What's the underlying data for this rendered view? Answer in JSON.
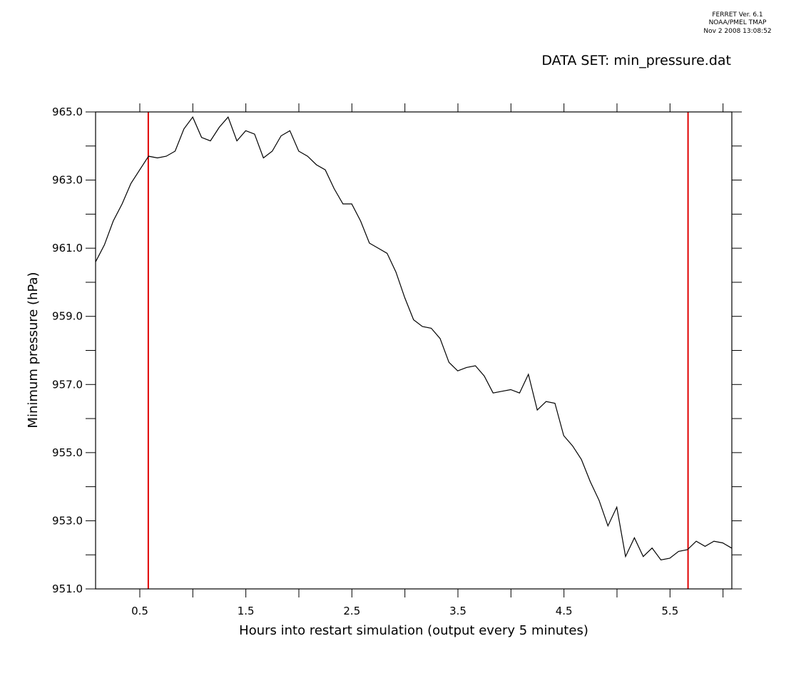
{
  "header": {
    "software": "FERRET Ver. 6.1",
    "org": "NOAA/PMEL TMAP",
    "timestamp": "Nov  2 2008 13:08:52",
    "dataset_label": "DATA SET: min_pressure.dat"
  },
  "colors": {
    "line": "#000000",
    "markers": "#e00000",
    "axes": "#000000"
  },
  "chart_data": {
    "type": "line",
    "title": "",
    "xlabel": "Hours into restart simulation (output every 5 minutes)",
    "ylabel": "Minimum pressure (hPa)",
    "xlim": [
      0.083,
      6.083
    ],
    "ylim": [
      951.0,
      965.0
    ],
    "x_ticks": [
      "0.5",
      "1.5",
      "2.5",
      "3.5",
      "4.5",
      "5.5"
    ],
    "y_ticks": [
      "951.0",
      "953.0",
      "955.0",
      "957.0",
      "959.0",
      "961.0",
      "963.0",
      "965.0"
    ],
    "grid": false,
    "vertical_markers": [
      0.58,
      5.67
    ],
    "series": [
      {
        "x_start": 0.083,
        "x_step": 0.0833,
        "values": [
          960.6,
          961.1,
          961.8,
          962.3,
          962.9,
          963.3,
          963.7,
          963.65,
          963.7,
          963.85,
          964.5,
          964.85,
          964.25,
          964.15,
          964.55,
          964.85,
          964.15,
          964.45,
          964.35,
          963.65,
          963.85,
          964.3,
          964.45,
          963.85,
          963.7,
          963.45,
          963.3,
          962.75,
          962.3,
          962.3,
          961.8,
          961.15,
          961.0,
          960.85,
          960.3,
          959.55,
          958.9,
          958.7,
          958.65,
          958.35,
          957.65,
          957.4,
          957.5,
          957.55,
          957.25,
          956.75,
          956.8,
          956.85,
          956.75,
          957.3,
          956.25,
          956.5,
          956.45,
          955.5,
          955.2,
          954.8,
          954.15,
          953.6,
          952.85,
          953.4,
          951.95,
          952.5,
          951.95,
          952.2,
          951.85,
          951.9,
          952.1,
          952.15,
          952.4,
          952.25,
          952.4,
          952.35,
          952.2
        ]
      }
    ]
  }
}
